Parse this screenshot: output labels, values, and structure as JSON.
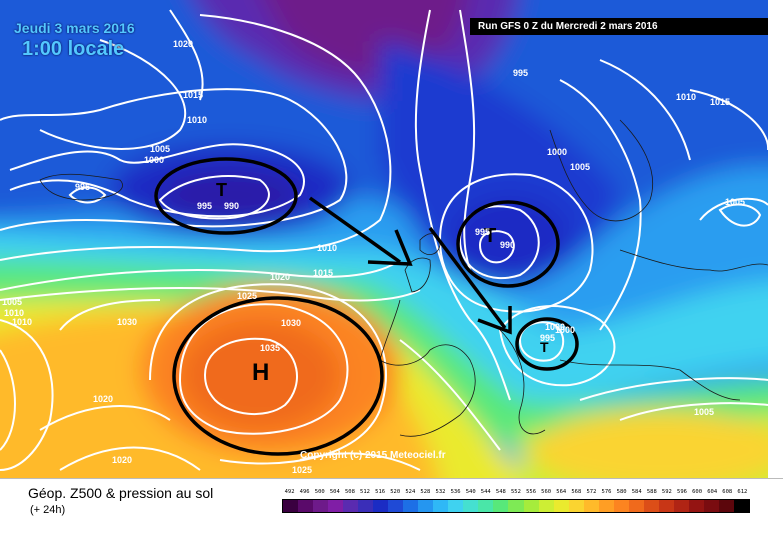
{
  "header": {
    "date": "Jeudi 3 mars 2016",
    "time": "1:00 locale",
    "run": "Run GFS 0 Z du Mercredi 2 mars 2016"
  },
  "footer": {
    "title": "Géop. Z500 & pression au sol",
    "subtitle": "(+ 24h)",
    "copyright": "Copyright (c) 2015 Meteociel.fr"
  },
  "pressure_centers": {
    "high": "H",
    "low_iceland": "T",
    "low_north_sea": "T",
    "low_alps": "T"
  },
  "isobar_labels": [
    "1020",
    "1015",
    "1010",
    "1005",
    "1000",
    "995",
    "995",
    "990",
    "995",
    "1010",
    "1020",
    "1015",
    "1025",
    "1030",
    "1035",
    "1030",
    "1020",
    "1020",
    "1025",
    "1005",
    "1010",
    "1010",
    "1000",
    "1000",
    "1005",
    "1010",
    "1015",
    "1005",
    "1005",
    "990",
    "995",
    "1000",
    "995"
  ],
  "legend": {
    "values": [
      "492",
      "496",
      "500",
      "504",
      "508",
      "512",
      "516",
      "520",
      "524",
      "528",
      "532",
      "536",
      "540",
      "544",
      "548",
      "552",
      "556",
      "560",
      "564",
      "568",
      "572",
      "576",
      "580",
      "584",
      "588",
      "592",
      "596",
      "600",
      "604",
      "608",
      "612"
    ],
    "colors": [
      "#3a0040",
      "#5a0a6a",
      "#6e1a8a",
      "#801ea6",
      "#5a2bb0",
      "#3a2eb8",
      "#1b2cc4",
      "#1f4ad6",
      "#1d6fe6",
      "#2596f0",
      "#2fb8f6",
      "#3fd2f0",
      "#45e0d0",
      "#4ae6a8",
      "#58e87a",
      "#7eea55",
      "#a6ec3c",
      "#cdee34",
      "#eaea2e",
      "#fad430",
      "#ffba2a",
      "#ff9e24",
      "#fc8420",
      "#f06a1c",
      "#dc4e18",
      "#c83616",
      "#b02414",
      "#941412",
      "#7a0c10",
      "#5c060c",
      "#000000"
    ]
  }
}
